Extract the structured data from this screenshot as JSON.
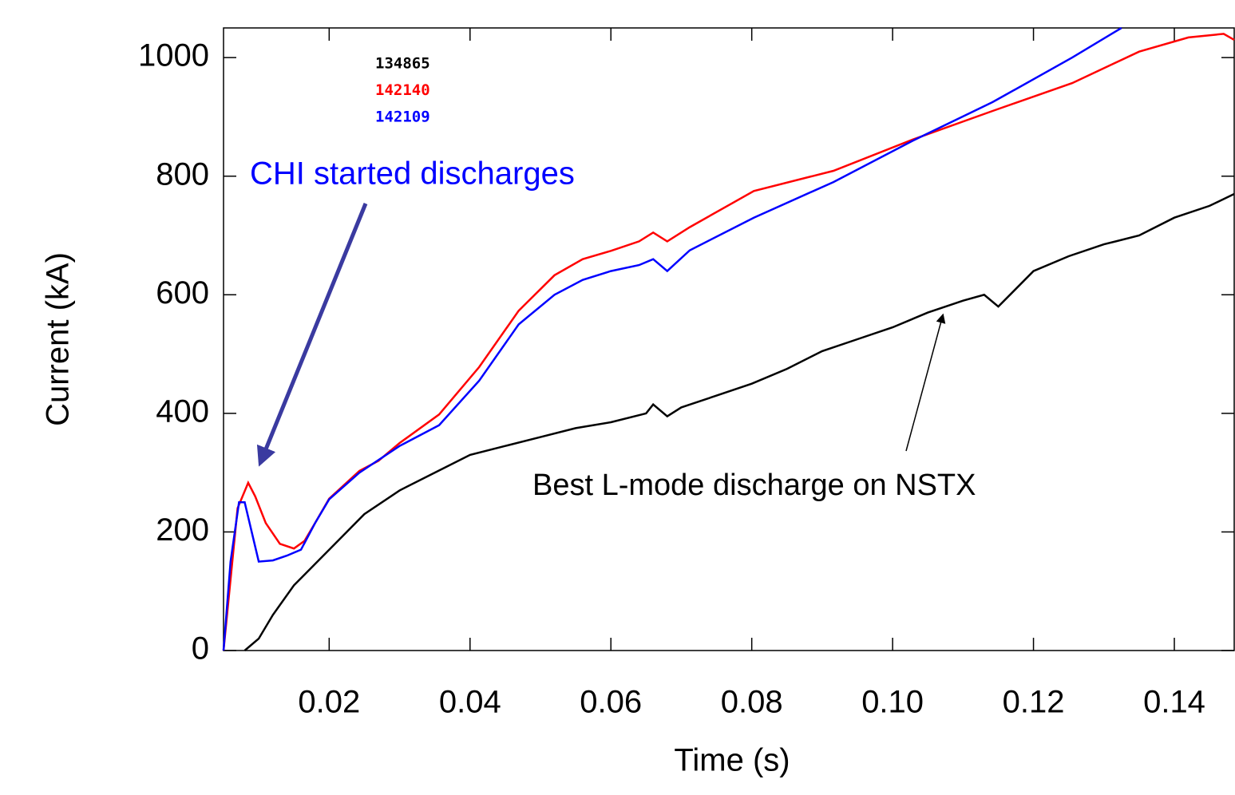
{
  "chart_data": {
    "type": "line",
    "xlabel": "Time (s)",
    "ylabel": "Current (kA)",
    "xlim": [
      0.005,
      0.1485
    ],
    "ylim": [
      0,
      1050
    ],
    "xticks": [
      0.02,
      0.04,
      0.06,
      0.08,
      {
        "value": 0.1,
        "label": "0.10"
      },
      0.12,
      0.14
    ],
    "yticks": [
      0,
      200,
      400,
      600,
      800,
      1000
    ],
    "grid": false,
    "annotations": [
      "CHI started discharges",
      "Best L-mode discharge on NSTX"
    ],
    "series": [
      {
        "name": "134865",
        "color": "#000000",
        "x": [
          0.008,
          0.01,
          0.012,
          0.015,
          0.02,
          0.025,
          0.03,
          0.035,
          0.04,
          0.045,
          0.05,
          0.055,
          0.06,
          0.065,
          0.066,
          0.068,
          0.07,
          0.075,
          0.08,
          0.085,
          0.09,
          0.095,
          0.1,
          0.105,
          0.11,
          0.113,
          0.115,
          0.12,
          0.125,
          0.13,
          0.135,
          0.14,
          0.145,
          0.1485
        ],
        "values": [
          0,
          20,
          60,
          110,
          170,
          230,
          270,
          300,
          330,
          345,
          360,
          375,
          385,
          400,
          415,
          395,
          410,
          430,
          450,
          475,
          505,
          525,
          545,
          570,
          590,
          600,
          580,
          640,
          665,
          685,
          700,
          730,
          750,
          770
        ]
      },
      {
        "name": "142140",
        "color": "#ff0000",
        "x": [
          0.005,
          0.006,
          0.007,
          0.0085,
          0.0095,
          0.011,
          0.013,
          0.015,
          0.0165,
          0.018,
          0.02,
          0.0243,
          0.027,
          0.03,
          0.0356,
          0.0413,
          0.0469,
          0.052,
          0.056,
          0.06,
          0.064,
          0.066,
          0.068,
          0.0712,
          0.0803,
          0.0916,
          0.1029,
          0.1142,
          0.1255,
          0.135,
          0.142,
          0.147,
          0.1485
        ],
        "values": [
          0,
          120,
          240,
          283,
          260,
          215,
          180,
          172,
          185,
          215,
          256,
          303,
          320,
          350,
          398,
          478,
          573,
          633,
          660,
          674,
          690,
          705,
          690,
          714,
          775,
          809,
          862,
          910,
          957,
          1010,
          1034,
          1040,
          1030
        ]
      },
      {
        "name": "142109",
        "color": "#0000ff",
        "x": [
          0.005,
          0.006,
          0.0072,
          0.008,
          0.009,
          0.01,
          0.012,
          0.014,
          0.016,
          0.018,
          0.02,
          0.0243,
          0.03,
          0.0356,
          0.0413,
          0.0469,
          0.052,
          0.056,
          0.06,
          0.064,
          0.066,
          0.068,
          0.0712,
          0.0803,
          0.0916,
          0.1029,
          0.1142,
          0.1255,
          0.1325
        ],
        "values": [
          0,
          150,
          250,
          250,
          200,
          150,
          152,
          160,
          170,
          215,
          255,
          300,
          345,
          380,
          455,
          550,
          600,
          625,
          640,
          650,
          660,
          640,
          675,
          730,
          790,
          860,
          925,
          1000,
          1050
        ]
      }
    ]
  }
}
